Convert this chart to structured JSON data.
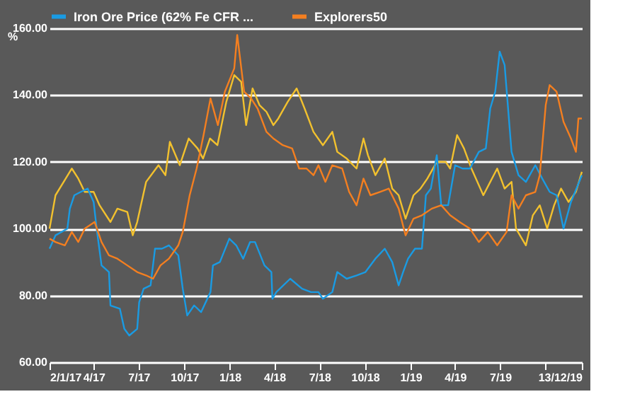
{
  "chart_data": {
    "type": "line",
    "ylabel": "%",
    "legend": "top left",
    "grid": "y",
    "line_style": "solid",
    "marker": "none",
    "xlim": [
      "2017-01-02",
      "2019-12-13"
    ],
    "xticks": [
      {
        "value": "2017-01-02",
        "label": "2/1/17"
      },
      {
        "value": "2017-04-01",
        "label": "4/17"
      },
      {
        "value": "2017-07-01",
        "label": "7/17"
      },
      {
        "value": "2017-10-01",
        "label": "10/17"
      },
      {
        "value": "2018-01-01",
        "label": "1/18"
      },
      {
        "value": "2018-04-01",
        "label": "4/18"
      },
      {
        "value": "2018-07-01",
        "label": "7/18"
      },
      {
        "value": "2018-10-01",
        "label": "10/18"
      },
      {
        "value": "2019-01-01",
        "label": "1/19"
      },
      {
        "value": "2019-04-01",
        "label": "4/19"
      },
      {
        "value": "2019-07-01",
        "label": "7/19"
      },
      {
        "value": "2019-10-01",
        "label": null
      },
      {
        "value": "2019-12-13",
        "label": "13/12/19"
      }
    ],
    "ylim": [
      60,
      160
    ],
    "yticks": [
      {
        "value": 60,
        "label": "60.00"
      },
      {
        "value": 80,
        "label": "80.00"
      },
      {
        "value": 100,
        "label": "100.00"
      },
      {
        "value": 120,
        "label": "120.00"
      },
      {
        "value": 140,
        "label": "140.00"
      },
      {
        "value": 160,
        "label": "160.00"
      }
    ],
    "series": [
      {
        "color": "#f2c12e",
        "x": [
          "2017-01-02",
          "2017-01-14",
          "2017-02-16",
          "2017-03-01",
          "2017-03-14",
          "2017-04-01",
          "2017-04-13",
          "2017-05-05",
          "2017-05-19",
          "2017-06-08",
          "2017-06-19",
          "2017-06-28",
          "2017-07-16",
          "2017-08-10",
          "2017-08-24",
          "2017-09-02",
          "2017-09-22",
          "2017-10-10",
          "2017-10-28",
          "2017-11-08",
          "2017-11-22",
          "2017-12-07",
          "2017-12-25",
          "2018-01-10",
          "2018-01-24",
          "2018-02-03",
          "2018-02-16",
          "2018-03-02",
          "2018-03-16",
          "2018-03-30",
          "2018-04-09",
          "2018-04-28",
          "2018-05-16",
          "2018-06-01",
          "2018-06-19",
          "2018-07-08",
          "2018-07-27",
          "2018-08-06",
          "2018-08-25",
          "2018-09-14",
          "2018-09-28",
          "2018-10-07",
          "2018-10-22",
          "2018-11-10",
          "2018-11-25",
          "2018-12-08",
          "2018-12-22",
          "2019-01-07",
          "2019-01-21",
          "2019-02-04",
          "2019-02-23",
          "2019-03-13",
          "2019-03-22",
          "2019-04-05",
          "2019-04-19",
          "2019-05-04",
          "2019-05-28",
          "2019-06-11",
          "2019-06-25",
          "2019-07-10",
          "2019-07-24",
          "2019-08-02",
          "2019-08-22",
          "2019-09-05",
          "2019-09-19",
          "2019-10-04",
          "2019-10-18",
          "2019-11-01",
          "2019-11-16",
          "2019-12-01",
          "2019-12-13"
        ],
        "values": [
          100,
          110,
          118,
          115,
          111,
          111,
          107,
          102,
          106,
          105,
          98,
          102,
          114,
          119,
          116,
          126,
          119,
          127,
          124,
          121,
          127,
          125,
          138,
          146,
          144,
          131,
          142,
          137,
          135,
          131,
          133,
          138,
          142,
          136,
          129,
          125,
          129,
          123,
          121,
          118,
          127,
          122,
          116,
          121,
          112,
          110,
          103,
          110,
          112,
          115,
          120,
          120,
          118,
          128,
          124,
          118,
          110,
          114,
          118,
          112,
          114,
          100,
          95,
          104,
          107,
          100,
          107,
          112,
          108,
          111,
          117
        ]
      },
      {
        "name": "Iron Ore Price (62% Fe CFR ...",
        "color": "#1a9be3",
        "x": [
          "2017-01-02",
          "2017-01-14",
          "2017-02-07",
          "2017-02-12",
          "2017-02-21",
          "2017-03-06",
          "2017-03-20",
          "2017-04-01",
          "2017-04-08",
          "2017-04-17",
          "2017-05-02",
          "2017-05-05",
          "2017-05-24",
          "2017-06-02",
          "2017-06-12",
          "2017-06-28",
          "2017-07-02",
          "2017-07-11",
          "2017-07-25",
          "2017-08-03",
          "2017-08-17",
          "2017-08-31",
          "2017-09-19",
          "2017-09-28",
          "2017-10-07",
          "2017-10-21",
          "2017-11-04",
          "2017-11-23",
          "2017-11-28",
          "2017-12-12",
          "2017-12-31",
          "2018-01-14",
          "2018-01-28",
          "2018-02-11",
          "2018-02-21",
          "2018-03-12",
          "2018-03-26",
          "2018-03-28",
          "2018-04-05",
          "2018-05-03",
          "2018-05-27",
          "2018-06-14",
          "2018-06-29",
          "2018-07-08",
          "2018-07-27",
          "2018-08-06",
          "2018-08-25",
          "2018-09-14",
          "2018-10-02",
          "2018-10-22",
          "2018-11-10",
          "2018-11-25",
          "2018-12-08",
          "2018-12-17",
          "2018-12-27",
          "2019-01-10",
          "2019-01-24",
          "2019-02-01",
          "2019-02-11",
          "2019-02-23",
          "2019-03-04",
          "2019-03-18",
          "2019-04-01",
          "2019-04-16",
          "2019-05-01",
          "2019-05-19",
          "2019-06-02",
          "2019-06-11",
          "2019-06-21",
          "2019-06-30",
          "2019-07-10",
          "2019-07-24",
          "2019-08-07",
          "2019-08-22",
          "2019-09-10",
          "2019-09-24",
          "2019-10-09",
          "2019-10-23",
          "2019-11-06",
          "2019-11-21",
          "2019-12-13"
        ],
        "values": [
          94,
          98,
          100,
          106,
          110,
          111,
          112,
          108,
          99,
          89,
          87,
          77,
          76,
          70,
          68,
          70,
          78,
          82,
          83,
          94,
          94,
          95,
          92,
          82,
          74,
          77,
          75,
          81,
          89,
          90,
          97,
          95,
          91,
          96,
          96,
          89,
          87,
          79,
          81,
          85,
          82,
          81,
          81,
          79,
          81,
          87,
          85,
          86,
          87,
          91,
          94,
          90,
          83,
          87,
          91,
          94,
          94,
          110,
          112,
          122,
          107,
          107,
          119,
          118,
          118,
          123,
          124,
          136,
          141,
          153,
          149,
          123,
          116,
          114,
          119,
          115,
          111,
          110,
          100,
          108,
          116
        ]
      },
      {
        "name": "Explorers50",
        "color": "#f47f20",
        "x": [
          "2017-01-02",
          "2017-01-14",
          "2017-02-02",
          "2017-02-16",
          "2017-03-01",
          "2017-03-14",
          "2017-04-03",
          "2017-04-17",
          "2017-05-02",
          "2017-05-19",
          "2017-06-08",
          "2017-06-28",
          "2017-07-16",
          "2017-07-30",
          "2017-08-14",
          "2017-08-31",
          "2017-09-19",
          "2017-09-28",
          "2017-10-12",
          "2017-10-26",
          "2017-11-09",
          "2017-11-23",
          "2017-12-08",
          "2017-12-22",
          "2018-01-10",
          "2018-01-16",
          "2018-01-30",
          "2018-02-13",
          "2018-02-26",
          "2018-03-16",
          "2018-03-30",
          "2018-04-18",
          "2018-05-07",
          "2018-05-21",
          "2018-06-05",
          "2018-06-19",
          "2018-06-29",
          "2018-07-13",
          "2018-07-27",
          "2018-08-16",
          "2018-08-30",
          "2018-09-14",
          "2018-09-28",
          "2018-10-12",
          "2018-10-31",
          "2018-11-18",
          "2018-12-08",
          "2018-12-22",
          "2019-01-07",
          "2019-01-24",
          "2019-02-13",
          "2019-03-04",
          "2019-03-22",
          "2019-04-10",
          "2019-05-01",
          "2019-05-19",
          "2019-06-06",
          "2019-06-25",
          "2019-07-14",
          "2019-07-24",
          "2019-08-07",
          "2019-08-22",
          "2019-09-10",
          "2019-09-19",
          "2019-10-01",
          "2019-10-09",
          "2019-10-23",
          "2019-11-06",
          "2019-11-21",
          "2019-12-01",
          "2019-12-06",
          "2019-12-13"
        ],
        "values": [
          97,
          96,
          95,
          99,
          96,
          100,
          102,
          96,
          92,
          91,
          89,
          87,
          86,
          85,
          89,
          91,
          95,
          99,
          110,
          118,
          128,
          139,
          131,
          141,
          148,
          158,
          141,
          139,
          136,
          129,
          127,
          125,
          124,
          118,
          118,
          116,
          119,
          114,
          119,
          118,
          111,
          107,
          115,
          110,
          111,
          112,
          106,
          98,
          103,
          104,
          106,
          107,
          104,
          102,
          100,
          96,
          99,
          95,
          99,
          110,
          106,
          110,
          111,
          116,
          137,
          143,
          141,
          132,
          127,
          123,
          133,
          133
        ]
      }
    ]
  }
}
